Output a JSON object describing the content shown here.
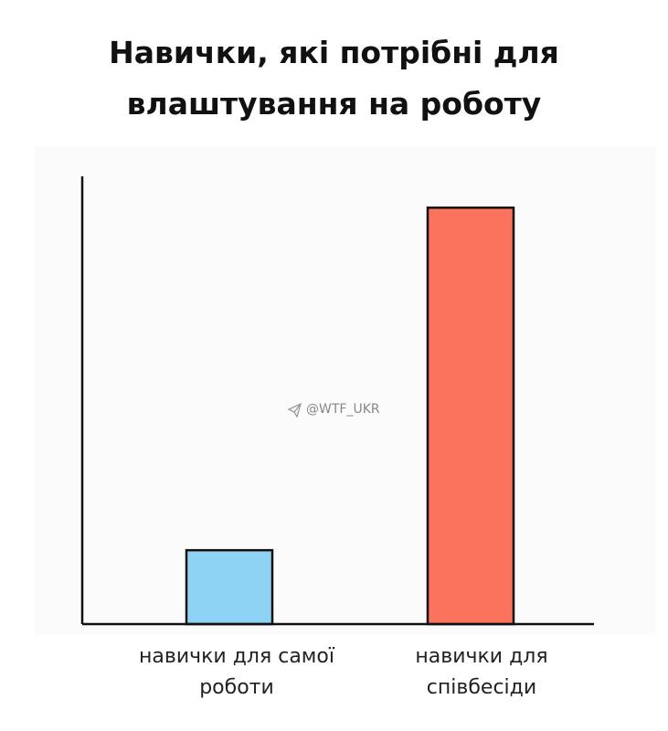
{
  "chart_data": {
    "type": "bar",
    "title": "Навички, які потрібні для влаштування на роботу",
    "watermark": "@WTF_UKR",
    "categories": [
      "навички для самої роботи",
      "навички для співбесіди"
    ],
    "values": [
      16.5,
      93
    ],
    "colors": [
      "#8fd3f4",
      "#fb735d"
    ],
    "ylim": [
      0,
      100
    ]
  }
}
